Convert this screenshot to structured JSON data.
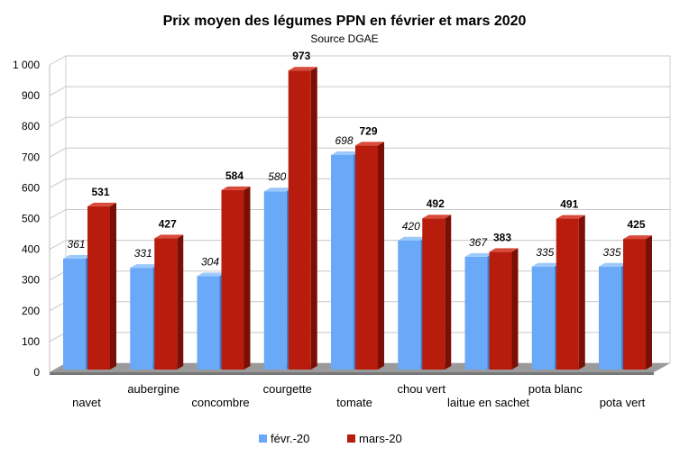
{
  "chart_data": {
    "type": "bar",
    "title": "Prix moyen des légumes PPN en février et mars 2020",
    "subtitle": "Source DGAE",
    "xlabel": "",
    "ylabel": "",
    "ylim": [
      0,
      1000
    ],
    "yticks": [
      0,
      100,
      200,
      300,
      400,
      500,
      600,
      700,
      800,
      900,
      1000
    ],
    "ytick_labels": [
      "0",
      "100",
      "200",
      "300",
      "400",
      "500",
      "600",
      "700",
      "800",
      "900",
      "1 000"
    ],
    "grid": true,
    "legend_position": "bottom",
    "categories": [
      "navet",
      "aubergine",
      "concombre",
      "courgette",
      "tomate",
      "chou vert",
      "laitue en sachet",
      "pota blanc",
      "pota vert"
    ],
    "series": [
      {
        "name": "févr.-20",
        "color": "#6aa9f7",
        "values": [
          361,
          331,
          304,
          580,
          698,
          420,
          367,
          335,
          335
        ]
      },
      {
        "name": "mars-20",
        "color": "#b81c0c",
        "values": [
          531,
          427,
          584,
          973,
          729,
          492,
          383,
          491,
          425
        ]
      }
    ]
  }
}
